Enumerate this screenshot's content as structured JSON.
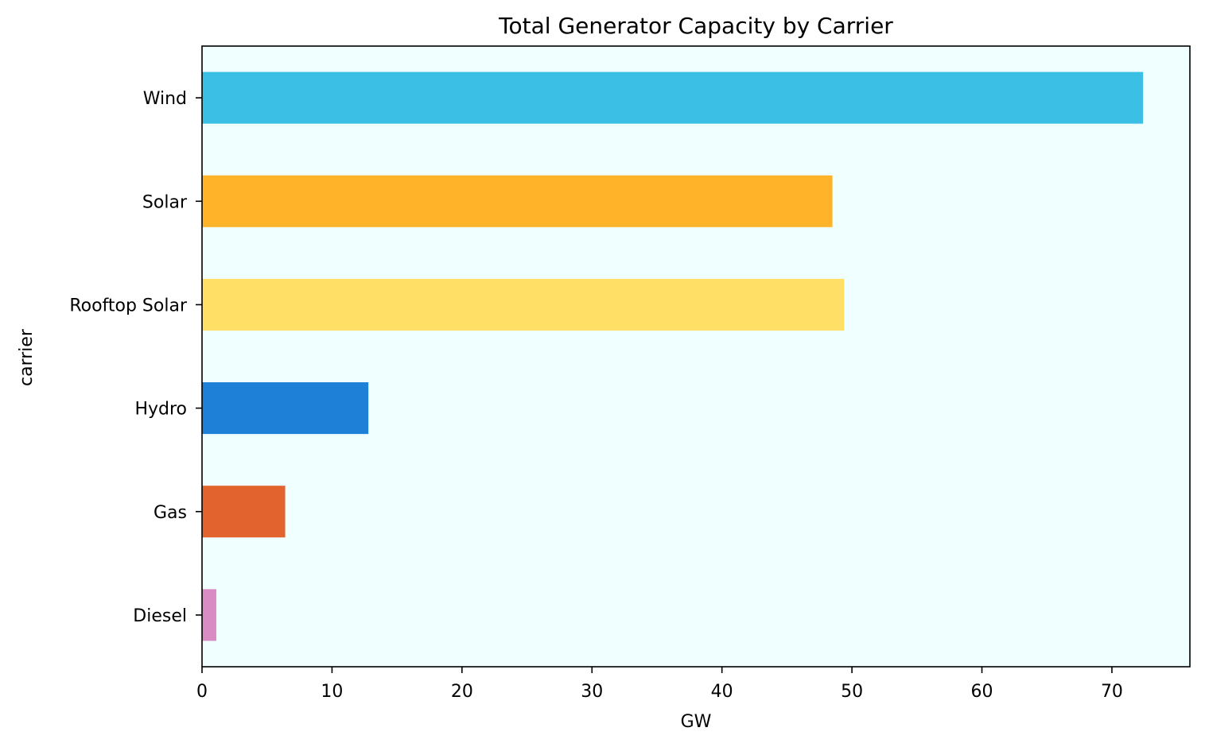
{
  "chart_data": {
    "type": "bar",
    "orientation": "horizontal",
    "title": "Total Generator Capacity by Carrier",
    "xlabel": "GW",
    "ylabel": "carrier",
    "xlim": [
      0,
      76
    ],
    "xticks": [
      0,
      10,
      20,
      30,
      40,
      50,
      60,
      70
    ],
    "grid": false,
    "legend": "none",
    "background_color": "#f0ffff",
    "categories": [
      "Diesel",
      "Gas",
      "Hydro",
      "Rooftop Solar",
      "Solar",
      "Wind"
    ],
    "values": [
      1.1,
      6.4,
      12.8,
      49.4,
      48.5,
      72.4
    ],
    "colors": [
      "#d98bc3",
      "#e3632e",
      "#1e80d6",
      "#ffdf66",
      "#ffb328",
      "#3cbfe5"
    ]
  }
}
